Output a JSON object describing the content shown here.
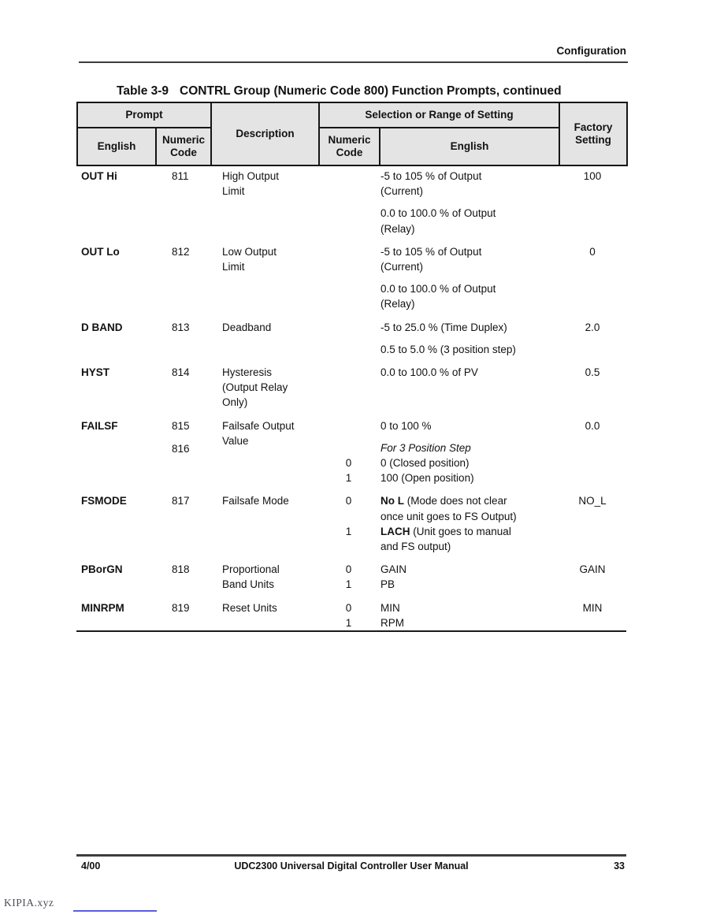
{
  "header": {
    "section_label": "Configuration"
  },
  "title": {
    "label": "Table 3-9",
    "text": "CONTRL Group (Numeric Code 800) Function Prompts, continued"
  },
  "table": {
    "header": {
      "prompt": "Prompt",
      "description": "Description",
      "selection": "Selection or Range of Setting",
      "factory": "Factory Setting",
      "english": "English",
      "numeric_code": "Numeric Code",
      "sel_numeric_code": "Numeric Code",
      "sel_english": "English"
    },
    "rows": [
      {
        "prompt": "OUT Hi",
        "codes": [
          {
            "t": "811"
          }
        ],
        "desc": [
          "High Output",
          "Limit"
        ],
        "sel": [
          {
            "lines": [
              [
                {
                  "t": "-5 to 105 % of Output"
                }
              ],
              [
                {
                  "t": "(Current)"
                }
              ]
            ]
          },
          {
            "gap": true,
            "lines": [
              [
                {
                  "t": "0.0 to 100.0 % of Output"
                }
              ],
              [
                {
                  "t": "(Relay)"
                }
              ]
            ]
          }
        ],
        "factory": "100"
      },
      {
        "prompt": "OUT Lo",
        "codes": [
          {
            "t": "812"
          }
        ],
        "desc": [
          "Low Output",
          "Limit"
        ],
        "sel": [
          {
            "lines": [
              [
                {
                  "t": "-5 to 105 % of Output"
                }
              ],
              [
                {
                  "t": "(Current)"
                }
              ]
            ]
          },
          {
            "gap": true,
            "lines": [
              [
                {
                  "t": "0.0 to 100.0 % of Output"
                }
              ],
              [
                {
                  "t": "(Relay)"
                }
              ]
            ]
          }
        ],
        "factory": "0"
      },
      {
        "prompt": "D BAND",
        "codes": [
          {
            "t": "813"
          }
        ],
        "desc": [
          "Deadband"
        ],
        "sel": [
          {
            "lines": [
              [
                {
                  "t": "-5 to 25.0 % (Time Duplex)"
                }
              ]
            ]
          },
          {
            "gap": true,
            "lines": [
              [
                {
                  "t": "0.5 to 5.0 % (3 position step)"
                }
              ]
            ]
          }
        ],
        "factory": "2.0"
      },
      {
        "prompt": "HYST",
        "codes": [
          {
            "t": "814"
          }
        ],
        "desc": [
          "Hysteresis",
          "(Output Relay",
          "Only)"
        ],
        "sel": [
          {
            "lines": [
              [
                {
                  "t": "0.0 to 100.0 % of PV"
                }
              ]
            ]
          }
        ],
        "factory": "0.5"
      },
      {
        "prompt": "FAILSF",
        "codes": [
          {
            "t": "815"
          },
          {
            "t": "816",
            "gap": true
          }
        ],
        "desc": [
          "Failsafe Output",
          "Value"
        ],
        "sel": [
          {
            "lines": [
              [
                {
                  "t": "0 to 100 %"
                }
              ]
            ]
          },
          {
            "gap": true,
            "lines": [
              [
                {
                  "t": "For 3 Position Step",
                  "i": true
                }
              ]
            ]
          },
          {
            "code": "0",
            "lines": [
              [
                {
                  "t": "0 (Closed position)"
                }
              ]
            ]
          },
          {
            "code": "1",
            "lines": [
              [
                {
                  "t": "100 (Open position)"
                }
              ]
            ]
          }
        ],
        "factory": "0.0"
      },
      {
        "prompt": "FSMODE",
        "codes": [
          {
            "t": "817"
          }
        ],
        "desc": [
          "Failsafe Mode"
        ],
        "sel": [
          {
            "code": "0",
            "lines": [
              [
                {
                  "t": "No L",
                  "b": true
                },
                {
                  "t": " (Mode does not clear"
                }
              ],
              [
                {
                  "t": "once unit goes to FS Output)"
                }
              ]
            ]
          },
          {
            "code": "1",
            "lines": [
              [
                {
                  "t": "LACH",
                  "b": true
                },
                {
                  "t": " (Unit goes to manual"
                }
              ],
              [
                {
                  "t": "and FS output)"
                }
              ]
            ]
          }
        ],
        "factory": "NO_L"
      },
      {
        "prompt": "PBorGN",
        "codes": [
          {
            "t": "818"
          }
        ],
        "desc": [
          "Proportional",
          "Band Units"
        ],
        "sel": [
          {
            "code": "0",
            "lines": [
              [
                {
                  "t": "GAIN"
                }
              ]
            ]
          },
          {
            "code": "1",
            "lines": [
              [
                {
                  "t": "PB"
                }
              ]
            ]
          }
        ],
        "factory": "GAIN"
      },
      {
        "prompt": "MINRPM",
        "codes": [
          {
            "t": "819"
          }
        ],
        "desc": [
          "Reset Units"
        ],
        "sel": [
          {
            "code": "0",
            "lines": [
              [
                {
                  "t": "MIN"
                }
              ]
            ]
          },
          {
            "code": "1",
            "lines": [
              [
                {
                  "t": "RPM"
                }
              ]
            ]
          }
        ],
        "factory": "MIN"
      }
    ]
  },
  "footer": {
    "date": "4/00",
    "manual": "UDC2300 Universal Digital Controller User Manual",
    "page_number": "33"
  },
  "watermark": {
    "text": "KIPIA.xyz"
  },
  "colors": {
    "header_bg": "#e4e4e4",
    "border": "#161616",
    "rule": "#3d3d3d",
    "watermark_link": "#5a5af0"
  }
}
